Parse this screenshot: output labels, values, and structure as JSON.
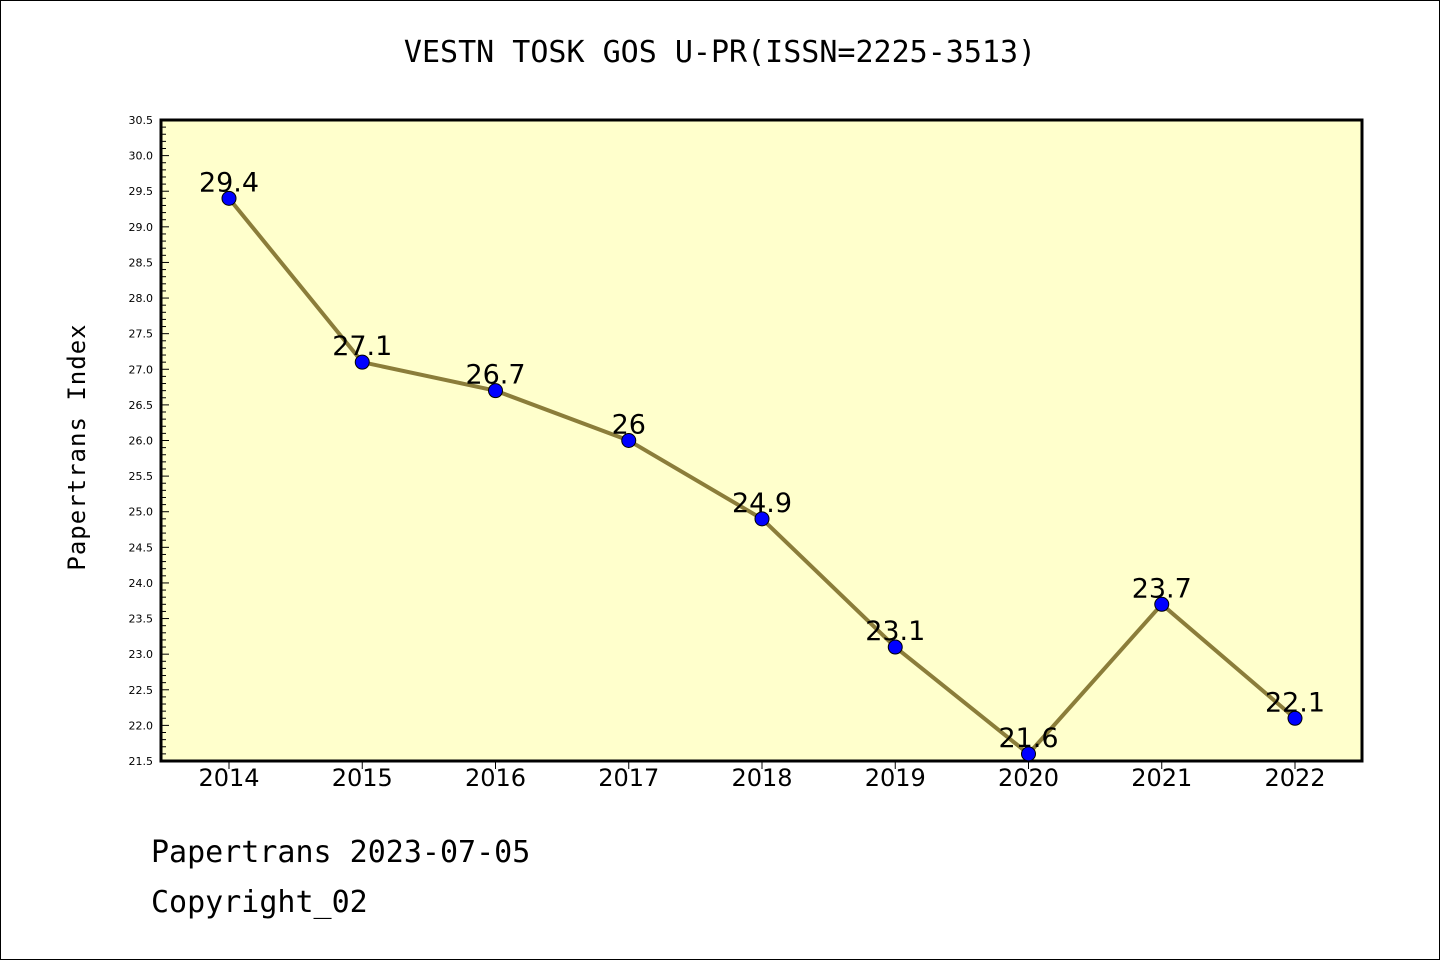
{
  "chart_data": {
    "type": "line",
    "title": "VESTN TOSK GOS U-PR(ISSN=2225-3513)",
    "xlabel": "",
    "ylabel": "Papertrans Index",
    "categories": [
      "2014",
      "2015",
      "2016",
      "2017",
      "2018",
      "2019",
      "2020",
      "2021",
      "2022"
    ],
    "series": [
      {
        "values": [
          29.4,
          27.1,
          26.7,
          26,
          24.9,
          23.1,
          21.6,
          23.7,
          22.1
        ],
        "labels": [
          "29.4",
          "27.1",
          "26.7",
          "26",
          "24.9",
          "23.1",
          "21.6",
          "23.7",
          "22.1"
        ]
      }
    ],
    "ylim": [
      21.5,
      30.5
    ],
    "yticks": [
      "21.5",
      "22.0",
      "22.5",
      "23.0",
      "23.5",
      "24.0",
      "24.5",
      "25.0",
      "25.5",
      "26.0",
      "26.5",
      "27.0",
      "27.5",
      "28.0",
      "28.5",
      "29.0",
      "29.5",
      "30.0",
      "30.5"
    ],
    "grid": false,
    "colors": {
      "plot_background": "#ffffcc",
      "line": "#8b7d3a",
      "marker": "#0000ff"
    }
  },
  "footer": {
    "line1": "Papertrans 2023-07-05",
    "line2": "Copyright_02"
  }
}
